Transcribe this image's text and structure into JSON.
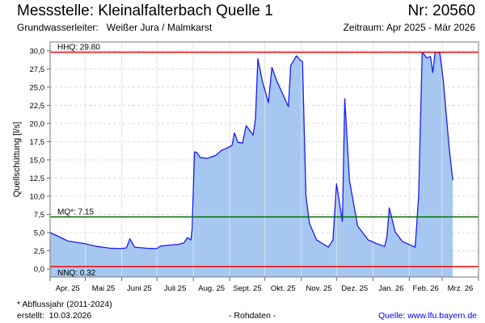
{
  "header": {
    "title": "Messstelle: Kleinalfalterbach Quelle 1",
    "number": "Nr: 20560",
    "aquifer": "Grundwasserleiter:   Weißer Jura / Malmkarst",
    "period": "Zeitraum: Apr 2025 - Mär 2026"
  },
  "footer": {
    "note": "* Abflussjahr (2011-2024)",
    "created": "erstellt:  10.03.2026",
    "raw": "- Rohdaten -",
    "source": "Quelle: www.lfu.bayern.de"
  },
  "colors": {
    "line": "#1a1aff",
    "fill": "#a6c8f0",
    "hhq": "#ff0000",
    "nnq": "#ff0000",
    "mq": "#007000"
  },
  "chart_data": {
    "type": "area",
    "ylabel": "Quellschüttung [l/s]",
    "xlim": [
      "2025-04-01",
      "2026-04-01"
    ],
    "ylim": [
      -1.1,
      31.2
    ],
    "grid": true,
    "yticks": [
      0,
      2.5,
      5,
      7.5,
      10,
      12.5,
      15,
      17.5,
      20,
      22.5,
      25,
      27.5,
      30
    ],
    "ytick_labels": [
      "0,0",
      "2,5",
      "5,0",
      "7,5",
      "10,0",
      "12,5",
      "15,0",
      "17,5",
      "20,0",
      "22,5",
      "25,0",
      "27,5",
      "30,0"
    ],
    "month_starts": [
      "2025-04-01",
      "2025-05-01",
      "2025-06-01",
      "2025-07-01",
      "2025-08-01",
      "2025-09-01",
      "2025-10-01",
      "2025-11-01",
      "2025-12-01",
      "2026-01-01",
      "2026-02-01",
      "2026-03-01",
      "2026-04-01"
    ],
    "month_labels": [
      "Apr. 25",
      "Mai 25",
      "Juni 25",
      "Juli 25",
      "Aug. 25",
      "Sept. 25",
      "Okt. 25",
      "Nov. 25",
      "Dez. 25",
      "Jan. 26",
      "Feb. 26",
      "Mrz. 26"
    ],
    "reference_lines": [
      {
        "label": "HHQ: 29.80",
        "value": 29.8,
        "color": "#ff0000"
      },
      {
        "label": "MQ*: 7.15",
        "value": 7.15,
        "color": "#007000"
      },
      {
        "label": "NNQ: 0.32",
        "value": 0.32,
        "color": "#ff0000"
      }
    ],
    "series": [
      {
        "name": "Quellschüttung",
        "x": [
          "2025-04-01",
          "2025-04-09",
          "2025-04-16",
          "2025-04-30",
          "2025-05-11",
          "2025-05-22",
          "2025-05-31",
          "2025-06-05",
          "2025-06-08",
          "2025-06-12",
          "2025-06-22",
          "2025-07-01",
          "2025-07-04",
          "2025-07-13",
          "2025-07-20",
          "2025-07-24",
          "2025-07-27",
          "2025-07-30",
          "2025-07-31",
          "2025-08-02",
          "2025-08-04",
          "2025-08-07",
          "2025-08-13",
          "2025-08-20",
          "2025-08-25",
          "2025-08-31",
          "2025-09-03",
          "2025-09-05",
          "2025-09-08",
          "2025-09-12",
          "2025-09-15",
          "2025-09-21",
          "2025-09-23",
          "2025-09-25",
          "2025-09-29",
          "2025-10-04",
          "2025-10-07",
          "2025-10-11",
          "2025-10-21",
          "2025-10-23",
          "2025-10-28",
          "2025-10-31",
          "2025-11-02",
          "2025-11-05",
          "2025-11-08",
          "2025-11-14",
          "2025-11-24",
          "2025-11-28",
          "2025-12-01",
          "2025-12-06",
          "2025-12-08",
          "2025-12-12",
          "2025-12-19",
          "2025-12-28",
          "2026-01-04",
          "2026-01-11",
          "2026-01-13",
          "2026-01-15",
          "2026-01-20",
          "2026-01-26",
          "2026-02-06",
          "2026-02-09",
          "2026-02-12",
          "2026-02-16",
          "2026-02-19",
          "2026-02-21",
          "2026-02-23",
          "2026-02-27",
          "2026-03-02",
          "2026-03-07",
          "2026-03-10"
        ],
        "y": [
          5.0,
          4.4,
          3.85,
          3.5,
          3.1,
          2.85,
          2.8,
          2.9,
          4.15,
          3.0,
          2.85,
          2.8,
          3.15,
          3.3,
          3.4,
          3.6,
          4.3,
          4.0,
          5.5,
          16.1,
          16.0,
          15.3,
          15.2,
          15.6,
          16.3,
          16.7,
          17.0,
          18.7,
          17.4,
          17.3,
          19.7,
          18.4,
          20.7,
          28.9,
          25.7,
          22.9,
          27.7,
          25.9,
          22.3,
          28.0,
          29.3,
          28.7,
          28.5,
          10.0,
          6.25,
          4.0,
          3.0,
          4.0,
          11.7,
          6.55,
          23.4,
          12.2,
          5.9,
          4.0,
          3.5,
          3.1,
          4.4,
          8.4,
          5.1,
          3.8,
          3.0,
          10.0,
          29.8,
          29.0,
          29.2,
          27.0,
          29.8,
          29.7,
          25.9,
          16.6,
          12.2
        ]
      }
    ]
  }
}
